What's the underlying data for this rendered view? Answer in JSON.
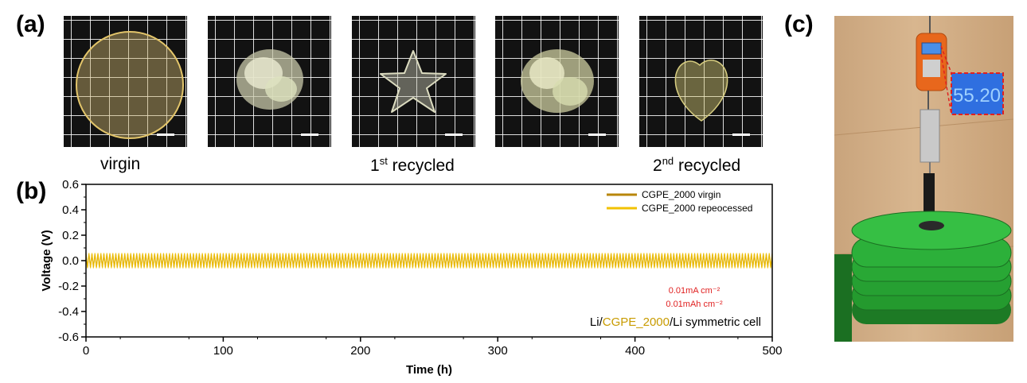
{
  "panels": {
    "a": "(a)",
    "b": "(b)",
    "c": "(c)"
  },
  "panel_a": {
    "captions": [
      {
        "base": "virgin",
        "sup": "",
        "rest": ""
      },
      {
        "base": "1",
        "sup": "st",
        "rest": " recycled"
      },
      {
        "base": "2",
        "sup": "nd",
        "rest": " recycled"
      }
    ]
  },
  "panel_c": {
    "scale_readout": "55.20"
  },
  "chart_data": {
    "type": "line",
    "title": "",
    "xlabel": "Time (h)",
    "ylabel": "Voltage (V)",
    "xlim": [
      0,
      500
    ],
    "ylim": [
      -0.6,
      0.6
    ],
    "xticks": [
      0,
      100,
      200,
      300,
      400,
      500
    ],
    "yticks": [
      -0.6,
      -0.4,
      -0.2,
      0.0,
      0.2,
      0.4,
      0.6
    ],
    "xtick_labels": [
      "0",
      "100",
      "200",
      "300",
      "400",
      "500"
    ],
    "ytick_labels": [
      "-0.6",
      "-0.4",
      "-0.2",
      "0.0",
      "0.2",
      "0.4",
      "0.6"
    ],
    "series": [
      {
        "name": "CGPE_2000 virgin",
        "color": "#b8860b",
        "amplitude": 0.05,
        "x_range": [
          0,
          500
        ]
      },
      {
        "name": "CGPE_2000 repeocessed",
        "color": "#f2c200",
        "amplitude": 0.06,
        "x_range": [
          0,
          500
        ]
      }
    ],
    "annotations": {
      "current_density": "0.01mA cm⁻²",
      "areal_capacity": "0.01mAh cm⁻²",
      "cell_prefix": "Li/",
      "cell_material": "CGPE_2000",
      "cell_suffix": "/Li symmetric cell"
    },
    "annotation_colors": {
      "current": "#e02020",
      "material": "#c89b00"
    }
  }
}
